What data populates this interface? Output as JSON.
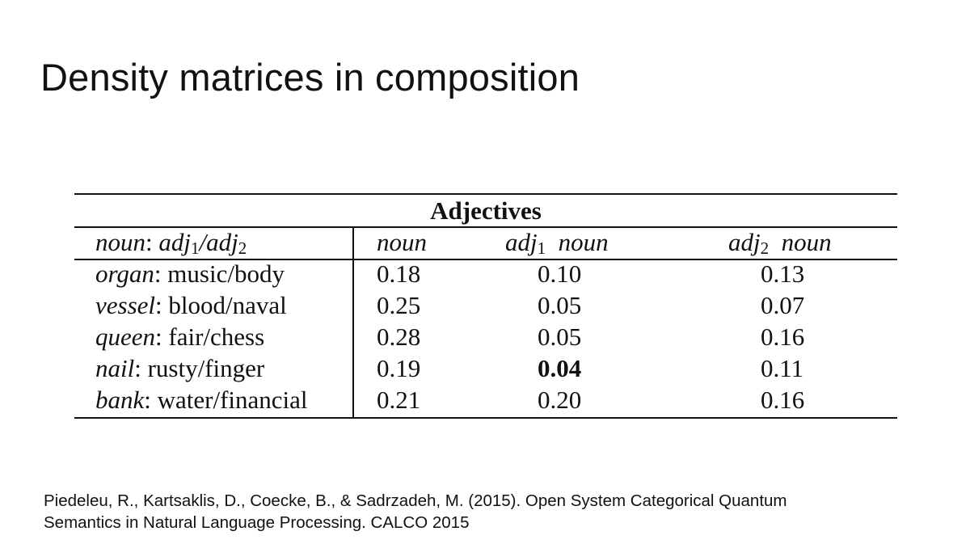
{
  "slide": {
    "title": "Density matrices in composition"
  },
  "table": {
    "group_header": "Adjectives",
    "headers": {
      "label_noun": "noun",
      "label_sep1": ": ",
      "label_adj1": "adj",
      "label_adj1_sub": "1",
      "label_slash": "/",
      "label_adj2": "adj",
      "label_adj2_sub": "2",
      "col1": "noun",
      "col2_adj": "adj",
      "col2_sub": "1",
      "col2_noun": "noun",
      "col3_adj": "adj",
      "col3_sub": "2",
      "col3_noun": "noun"
    },
    "rows": [
      {
        "noun": "organ",
        "adjs": "music/body",
        "v1": "0.18",
        "v2": "0.10",
        "v3": "0.13"
      },
      {
        "noun": "vessel",
        "adjs": "blood/naval",
        "v1": "0.25",
        "v2": "0.05",
        "v3": "0.07"
      },
      {
        "noun": "queen",
        "adjs": "fair/chess",
        "v1": "0.28",
        "v2": "0.05",
        "v3": "0.16"
      },
      {
        "noun": "nail",
        "adjs": "rusty/finger",
        "v1": "0.19",
        "v2": "0.04",
        "v3": "0.11"
      },
      {
        "noun": "bank",
        "adjs": "water/financial",
        "v1": "0.21",
        "v2": "0.20",
        "v3": "0.16"
      }
    ],
    "bold_cell": {
      "row": 3,
      "column": "v2"
    },
    "separator": ": "
  },
  "citation": {
    "line1": "Piedeleu, R., Kartsaklis, D., Coecke, B., & Sadrzadeh, M. (2015). Open System Categorical Quantum",
    "line2": "Semantics in Natural Language Processing. CALCO 2015"
  }
}
